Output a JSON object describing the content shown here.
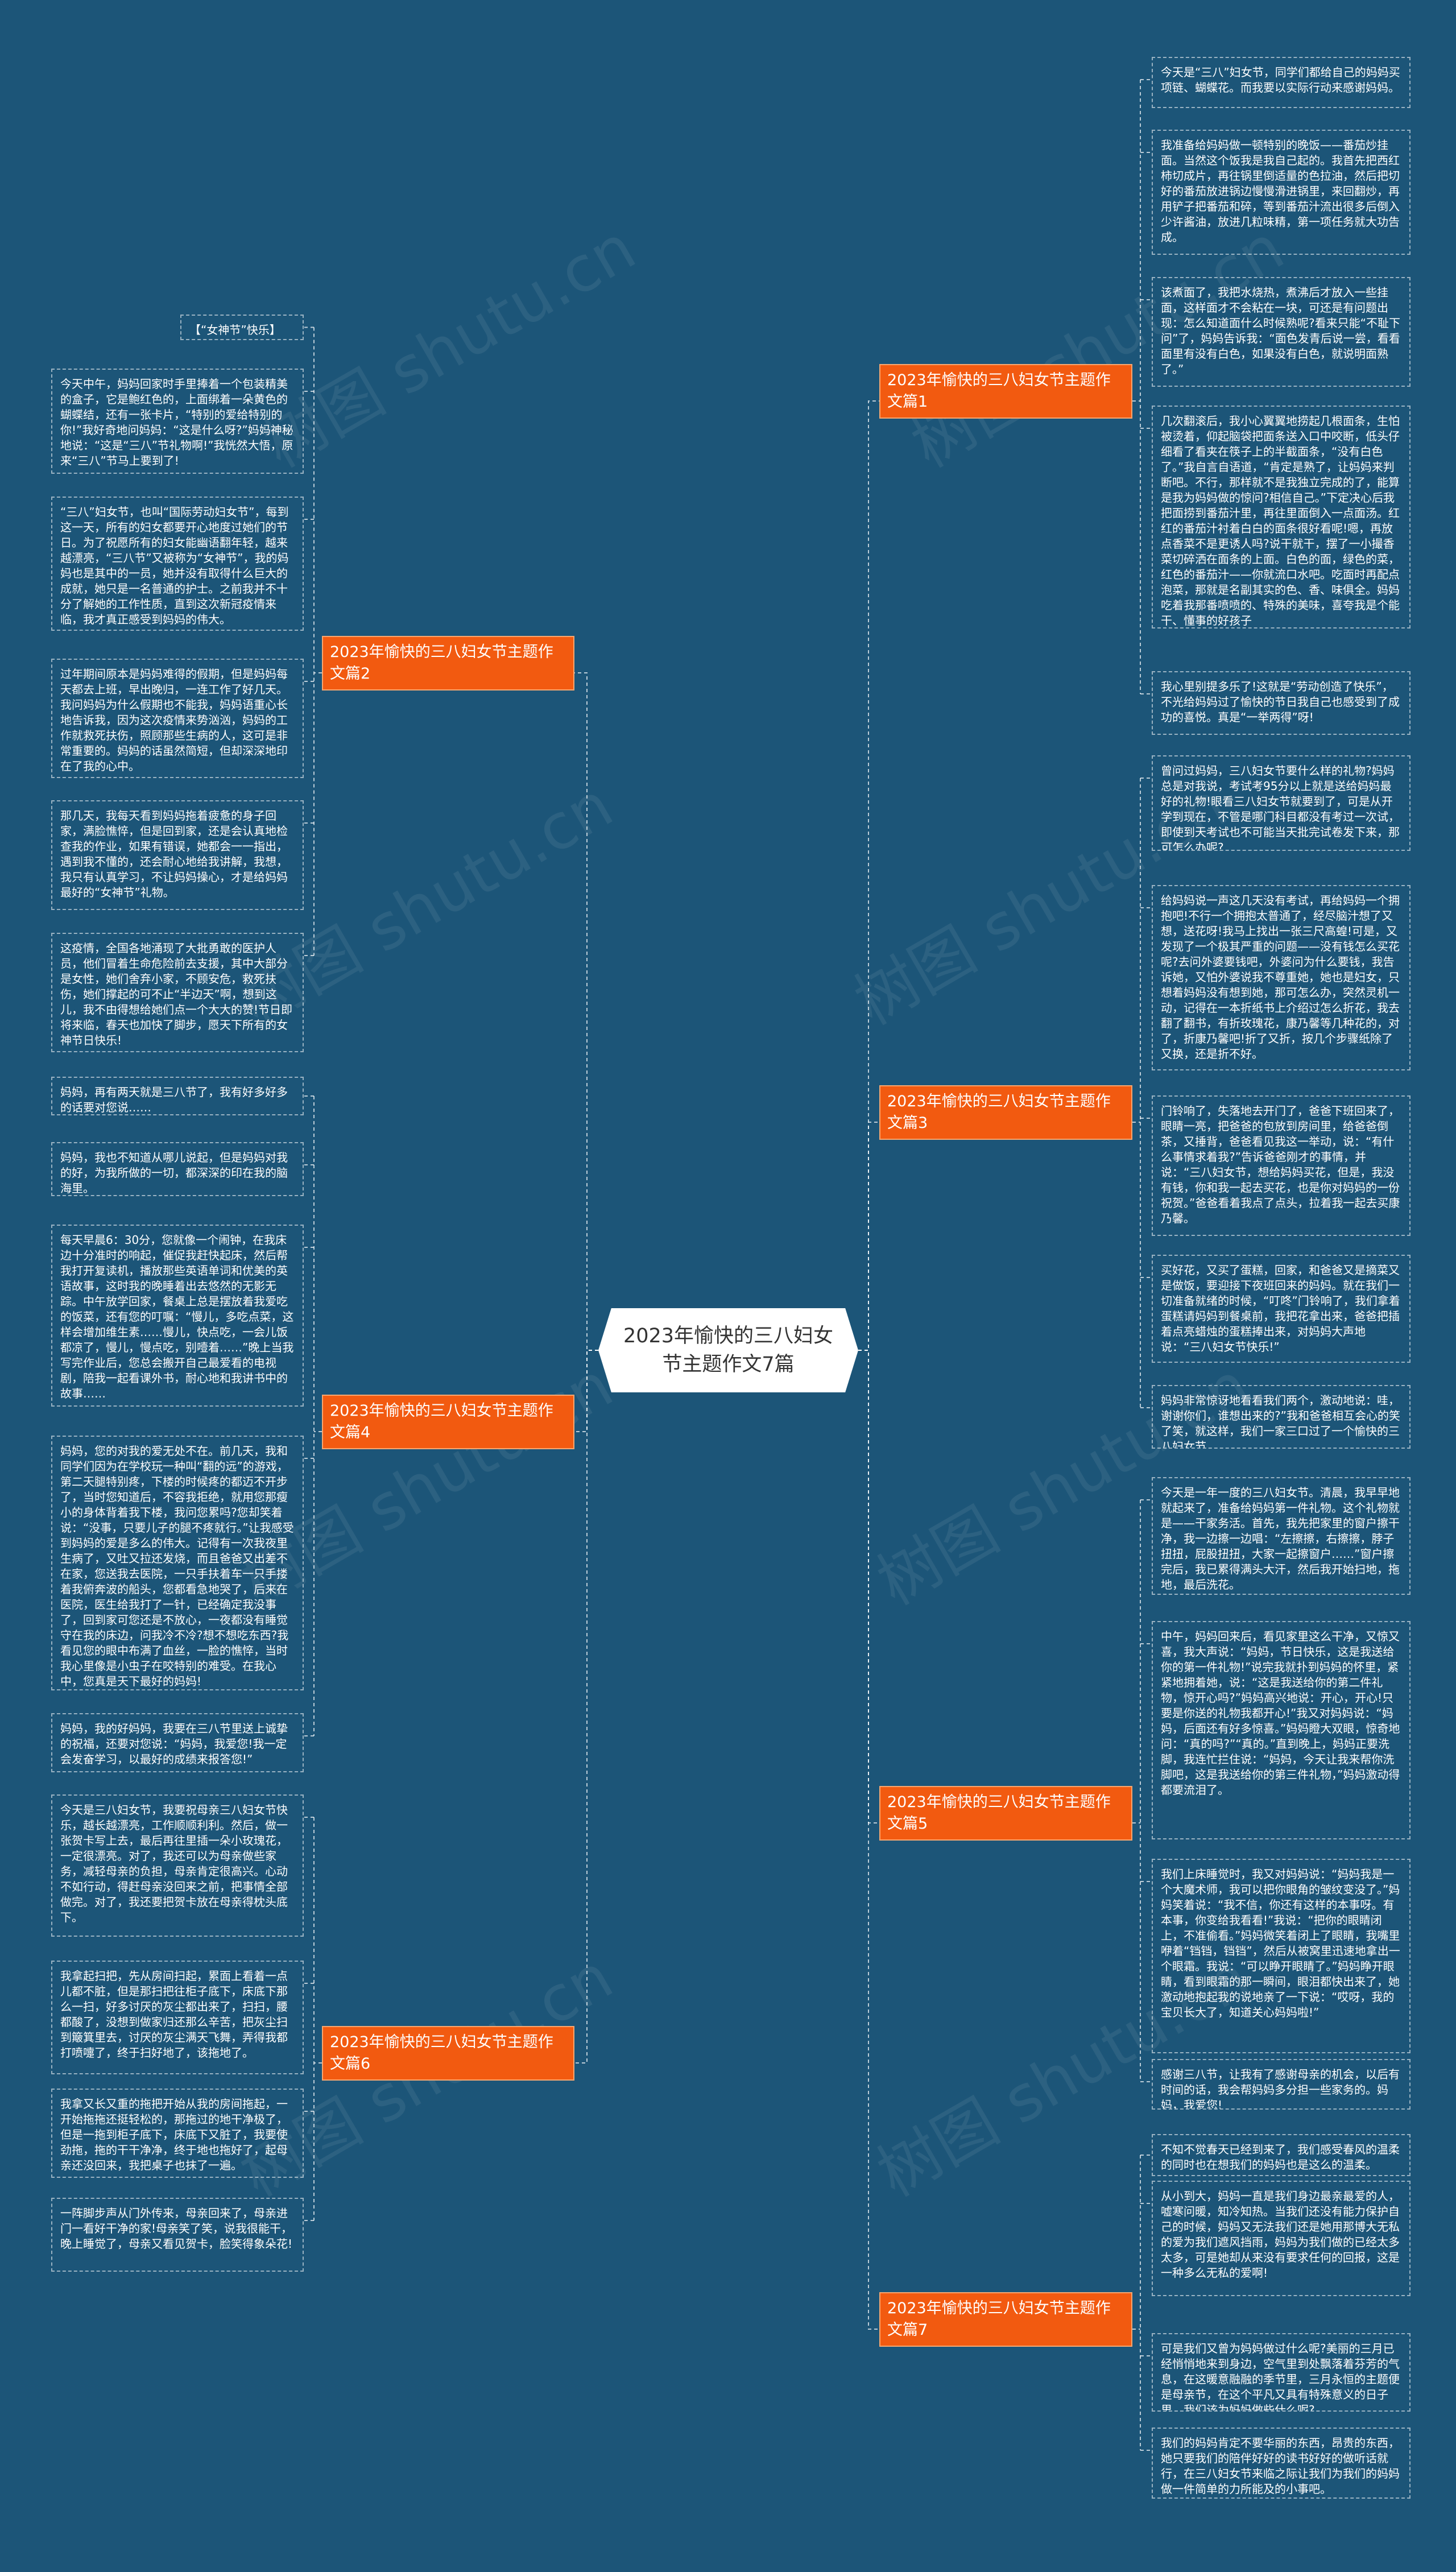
{
  "root": {
    "title": "2023年愉快的三八妇女节主题作文7篇"
  },
  "watermark": "树图 shutu.cn",
  "branches": [
    {
      "label": "2023年愉快的三八妇女节主题作文篇1",
      "leaves": [
        "今天是“三八”妇女节，同学们都给自己的妈妈买项链、蝴蝶花。而我要以实际行动来感谢妈妈。",
        "我准备给妈妈做一顿特别的晚饭——番茄炒挂面。当然这个饭我是我自己起的。我首先把西红柿切成片，再往锅里倒适量的色拉油，然后把切好的番茄放进锅边慢慢滑进锅里，来回翻炒，再用铲子把番茄和碎，等到番茄汁流出很多后倒入少许酱油，放进几粒味精，第一项任务就大功告成。",
        "该煮面了，我把水烧热，煮沸后才放入一些挂面，这样面才不会粘在一块，可还是有问题出现：怎么知道面什么时候熟呢?看来只能“不耻下问”了，妈妈告诉我：“面色发青后说一尝，看看面里有没有白色，如果没有白色，就说明面熟了。”",
        "几次翻滚后，我小心翼翼地捞起几根面条，生怕被烫着，仰起脑袋把面条送入口中咬断，低头仔细看了看夹在筷子上的半截面条，“没有白色了。”我自言自语道，“肯定是熟了，让妈妈来判断吧。不行，那样就不是我独立完成的了，能算是我为妈妈做的惊问?相信自己。”下定决心后我把面捞到番茄汁里，再往里面倒入一点面汤。红红的番茄汁衬着白白的面条很好看呢!嗯，再放点香菜不是更诱人吗?说干就干，摆了一小撮香菜切碎洒在面条的上面。白色的面，绿色的菜，红色的番茄汁——你就流口水吧。吃面时再配点泡菜，那就是名副其实的色、香、味俱全。妈妈吃着我那番喷喷的、特殊的美味，喜夸我是个能干、懂事的好孩子",
        "我心里别提多乐了!这就是“劳动创造了快乐”，不光给妈妈过了愉快的节日我自己也感受到了成功的喜悦。真是“一举两得”呀!"
      ]
    },
    {
      "label": "2023年愉快的三八妇女节主题作文篇2",
      "leaves": [
        "【“女神节”快乐】",
        "今天中午，妈妈回家时手里捧着一个包装精美的盒子，它是鲍红色的，上面绑着一朵黄色的蝴蝶结，还有一张卡片，“特别的爱给特别的你!”我好奇地问妈妈：“这是什么呀?”妈妈神秘地说：“这是“三八”节礼物啊!”我恍然大悟，原来“三八”节马上要到了!",
        "“三八”妇女节，也叫“国际劳动妇女节”，每到这一天，所有的妇女都要开心地度过她们的节日。为了祝愿所有的妇女能幽语翻年轻，越来越漂亮，“三八节”又被称为“女神节”，我的妈妈也是其中的一员，她并没有取得什么巨大的成就，她只是一名普通的护士。之前我并不十分了解她的工作性质，直到这次新冠疫情来临，我才真正感受到妈妈的伟大。",
        "过年期间原本是妈妈难得的假期，但是妈妈每天都去上班，早出晚归，一连工作了好几天。我问妈妈为什么假期也不能我，妈妈语重心长地告诉我，因为这次疫情来势汹汹，妈妈的工作就救死扶伤，照顾那些生病的人，这可是非常重要的。妈妈的话虽然简短，但却深深地印在了我的心中。",
        "那几天，我每天看到妈妈拖着疲惫的身子回家，满脸憔悴，但是回到家，还是会认真地检查我的作业，如果有错误，她都会一一指出，遇到我不懂的，还会耐心地给我讲解，我想，我只有认真学习，不让妈妈操心，才是给妈妈最好的“女神节”礼物。",
        "这疫情，全国各地涌现了大批勇敢的医护人员，他们冒着生命危险前去支援，其中大部分是女性，她们舍弃小家，不顾安危，救死扶伤，她们撑起的可不止“半边天”啊，想到这儿，我不由得想给她们点一个大大的赞!节日即将来临，春天也加快了脚步，愿天下所有的女神节日快乐!"
      ]
    },
    {
      "label": "2023年愉快的三八妇女节主题作文篇3",
      "leaves": [
        "曾问过妈妈，三八妇女节要什么样的礼物?妈妈总是对我说，考试考95分以上就是送给妈妈最好的礼物!眼看三八妇女节就要到了，可是从开学到现在，不管是哪门科目都没有考过一次试，即使到天考试也不可能当天批完试卷发下来，那可怎么办呢?",
        "给妈妈说一声这几天没有考试，再给妈妈一个拥抱吧!不行一个拥抱太普通了，经尽脑汁想了又想，送花呀!我马上找出一张三尺高蝗!可是，又发现了一个极其严重的问题——没有钱怎么买花呢?去问外婆要钱吧，外婆问为什么要钱，我告诉她，又怕外婆说我不尊重她，她也是妇女，只想着妈妈没有想到她，那可怎么办，突然灵机一动，记得在一本折纸书上介绍过怎么折花，我去翻了翻书，有折玫瑰花，康乃馨等几种花的，对了，折康乃馨吧!折了又折，按几个步骤纸除了又换，还是折不好。",
        "门铃响了，失落地去开门了，爸爸下班回来了，眼睛一亮，把爸爸的包放到房间里，给爸爸倒茶，又捶背，爸爸看见我这一举动，说：“有什么事情求着我?”告诉爸爸刚才的事情，并说：“三八妇女节，想给妈妈买花，但是，我没有钱，你和我一起去买花，也是你对妈妈的一份祝贺。”爸爸看着我点了点头，拉着我一起去买康乃馨。",
        "买好花，又买了蛋糕，回家，和爸爸又是摘菜又是做饭，要迎接下夜班回来的妈妈。就在我们一切准备就绪的时候，“叮咚”门铃响了，我们拿着蛋糕请妈妈到餐桌前，我把花拿出来，爸爸把插着点亮蜡烛的蛋糕捧出来，对妈妈大声地说：“三八妇女节快乐!”",
        "妈妈非常惊讶地看看我们两个，激动地说：哇，谢谢你们，谁想出来的?”我和爸爸相互会心的笑了笑，就这样，我们一家三口过了一个愉快的三八妇女节。"
      ]
    },
    {
      "label": "2023年愉快的三八妇女节主题作文篇4",
      "leaves": [
        "妈妈，再有两天就是三八节了，我有好多好多的话要对您说……",
        "妈妈，我也不知道从哪儿说起，但是妈妈对我的好，为我所做的一切，都深深的印在我的脑海里。",
        "每天早晨6：30分，您就像一个闹钟，在我床边十分准时的响起，催促我赶快起床，然后帮我打开复读机，播放那些英语单词和优美的英语故事，这时我的晚睡着出去悠然的无影无踪。中午放学回家，餐桌上总是摆放着我爱吃的饭菜，还有您的叮嘱：“慢儿，多吃点菜，这样会增加维生素……慢儿，快点吃，一会儿饭都凉了，慢儿，慢点吃，别噎着……”晚上当我写完作业后，您总会搬开自己最爱看的电视剧，陪我一起看课外书，耐心地和我讲书中的故事……",
        "妈妈，您的对我的爱无处不在。前几天，我和同学们因为在学校玩一种叫“翻的远”的游戏，第二天腿特别疼，下楼的时候疼的都迈不开步了，当时您知道后，不容我拒绝，就用您那瘦小的身体背着我下楼，我问您累吗?您却笑着说：“没事，只要儿子的腿不疼就行。”让我感受到妈妈的爱是多么的伟大。记得有一次我夜里生病了，又吐又拉还发烧，而且爸爸又出差不在家，您送我去医院，一只手扶着车一只手搂着我俯奔波的船头，您都看急地哭了，后来在医院，医生给我打了一针，已经确定我没事了，回到家可您还是不放心，一夜都没有睡觉守在我的床边，问我冷不冷?想不想吃东西?我看见您的眼中布满了血丝，一脸的憔悴，当时我心里像是小虫子在咬特别的难受。在我心中，您真是天下最好的妈妈!",
        "妈妈，我的好妈妈，我要在三八节里送上诚挚的祝福，还要对您说：“妈妈，我爱您!我一定会发奋学习，以最好的成绩来报答您!”"
      ]
    },
    {
      "label": "2023年愉快的三八妇女节主题作文篇5",
      "leaves": [
        "今天是一年一度的三八妇女节。清晨，我早早地就起来了，准备给妈妈第一件礼物。这个礼物就是——干家务活。首先，我先把家里的窗户擦干净，我一边擦一边唱：“左擦擦，右擦擦，脖子扭扭，屁股扭扭，大家一起擦窗户……”窗户擦完后，我已累得满头大汗，然后我开始扫地，拖地，最后洗花。",
        "中午，妈妈回来后，看见家里这么干净，又惊又喜，我大声说：“妈妈，节日快乐，这是我送给你的第一件礼物!”说完我就扑到妈妈的怀里，紧紧地拥着她，说：“这是我送给你的第二件礼物，惊开心吗?”妈妈高兴地说：开心，开心!只要是你送的礼物我都开心!”我又对妈妈说：“妈妈，后面还有好多惊喜。”妈妈瞪大双眼，惊奇地问：“真的吗?”“真的。”直到晚上，妈妈正要洗脚，我连忙拦住说：“妈妈，今天让我来帮你洗脚吧，这是我送给你的第三件礼物，”妈妈激动得都要流泪了。",
        "我们上床睡觉时，我又对妈妈说：“妈妈我是一个大魔术师，我可以把你眼角的皱纹变没了。”妈妈笑着说：“我不信，你还有这样的本事呀。有本事，你变给我看看!”我说：“把你的眼睛闭上，不准偷看。”妈妈微笑着闭上了眼睛，我嘴里咿着“铛铛，铛铛”，然后从被窝里迅速地拿出一个眼霜。我说：“可以睁开眼睛了。”妈妈睁开眼睛，看到眼霜的那一瞬间，眼泪都快出来了，她激动地抱起我的说地亲了一下说：“哎呀，我的宝贝长大了，知道关心妈妈啦!”",
        "感谢三八节，让我有了感谢母亲的机会，以后有时间的话，我会帮妈妈多分担一些家务的。妈妈，我爱您!"
      ]
    },
    {
      "label": "2023年愉快的三八妇女节主题作文篇6",
      "leaves": [
        "今天是三八妇女节，我要祝母亲三八妇女节快乐，越长越漂亮，工作顺顺利利。然后，做一张贺卡写上去，最后再往里插一朵小玫瑰花，一定很漂亮。对了，我还可以为母亲做些家务，减轻母亲的负担，母亲肯定很高兴。心动不如行动，得赶母亲没回来之前，把事情全部做完。对了，我还要把贺卡放在母亲得枕头底下。",
        "我拿起扫把，先从房间扫起，累面上看着一点儿都不脏，但是那扫把往柜子底下，床底下那么一扫，好多讨厌的灰尘都出来了，扫扫，腰都酸了，没想到做家归还那么辛苦，把灰尘扫到簸箕里去，讨厌的灰尘满天飞舞，弄得我都打喷嚏了，终于扫好地了，该拖地了。",
        "我拿又长又重的拖把开始从我的房间拖起，一开始拖拖还挺轻松的，那拖过的地干净极了，但是一拖到柜子底下，床底下又脏了，我要使劲拖，拖的干干净净，终于地也拖好了，起母亲还没回来，我把桌子也抹了一遍。",
        "一阵脚步声从门外传来，母亲回来了，母亲进门一看好干净的家!母亲笑了笑，说我很能干，晚上睡觉了，母亲又看见贺卡，脸笑得象朵花!"
      ]
    },
    {
      "label": "2023年愉快的三八妇女节主题作文篇7",
      "leaves": [
        "不知不觉春天已经到来了，我们感受春风的温柔的同时也在想我们的妈妈也是这么的温柔。",
        "从小到大，妈妈一直是我们身边最亲最爱的人，嘘寒问暖，知冷知热。当我们还没有能力保护自己的时候，妈妈又无法我们还是她用那博大无私的爱为我们遮风挡雨，妈妈为我们做的已经太多太多，可是她却从来没有要求任何的回报，这是一种多么无私的爱啊!",
        "可是我们又曾为妈妈做过什么呢?美丽的三月已经悄悄地来到身边，空气里到处飘落着芬芳的气息，在这暖意融融的季节里，三月永恒的主题便是母亲节，在这个平凡又具有特殊意义的日子里，我们该为妈妈做些什么呢?",
        "我们的妈妈肯定不要华丽的东西，昂贵的东西，她只要我们的陪伴好好的读书好好的做听话就行，在三八妇女节来临之际让我们为我们的妈妈做一件简单的力所能及的小事吧。"
      ]
    }
  ]
}
